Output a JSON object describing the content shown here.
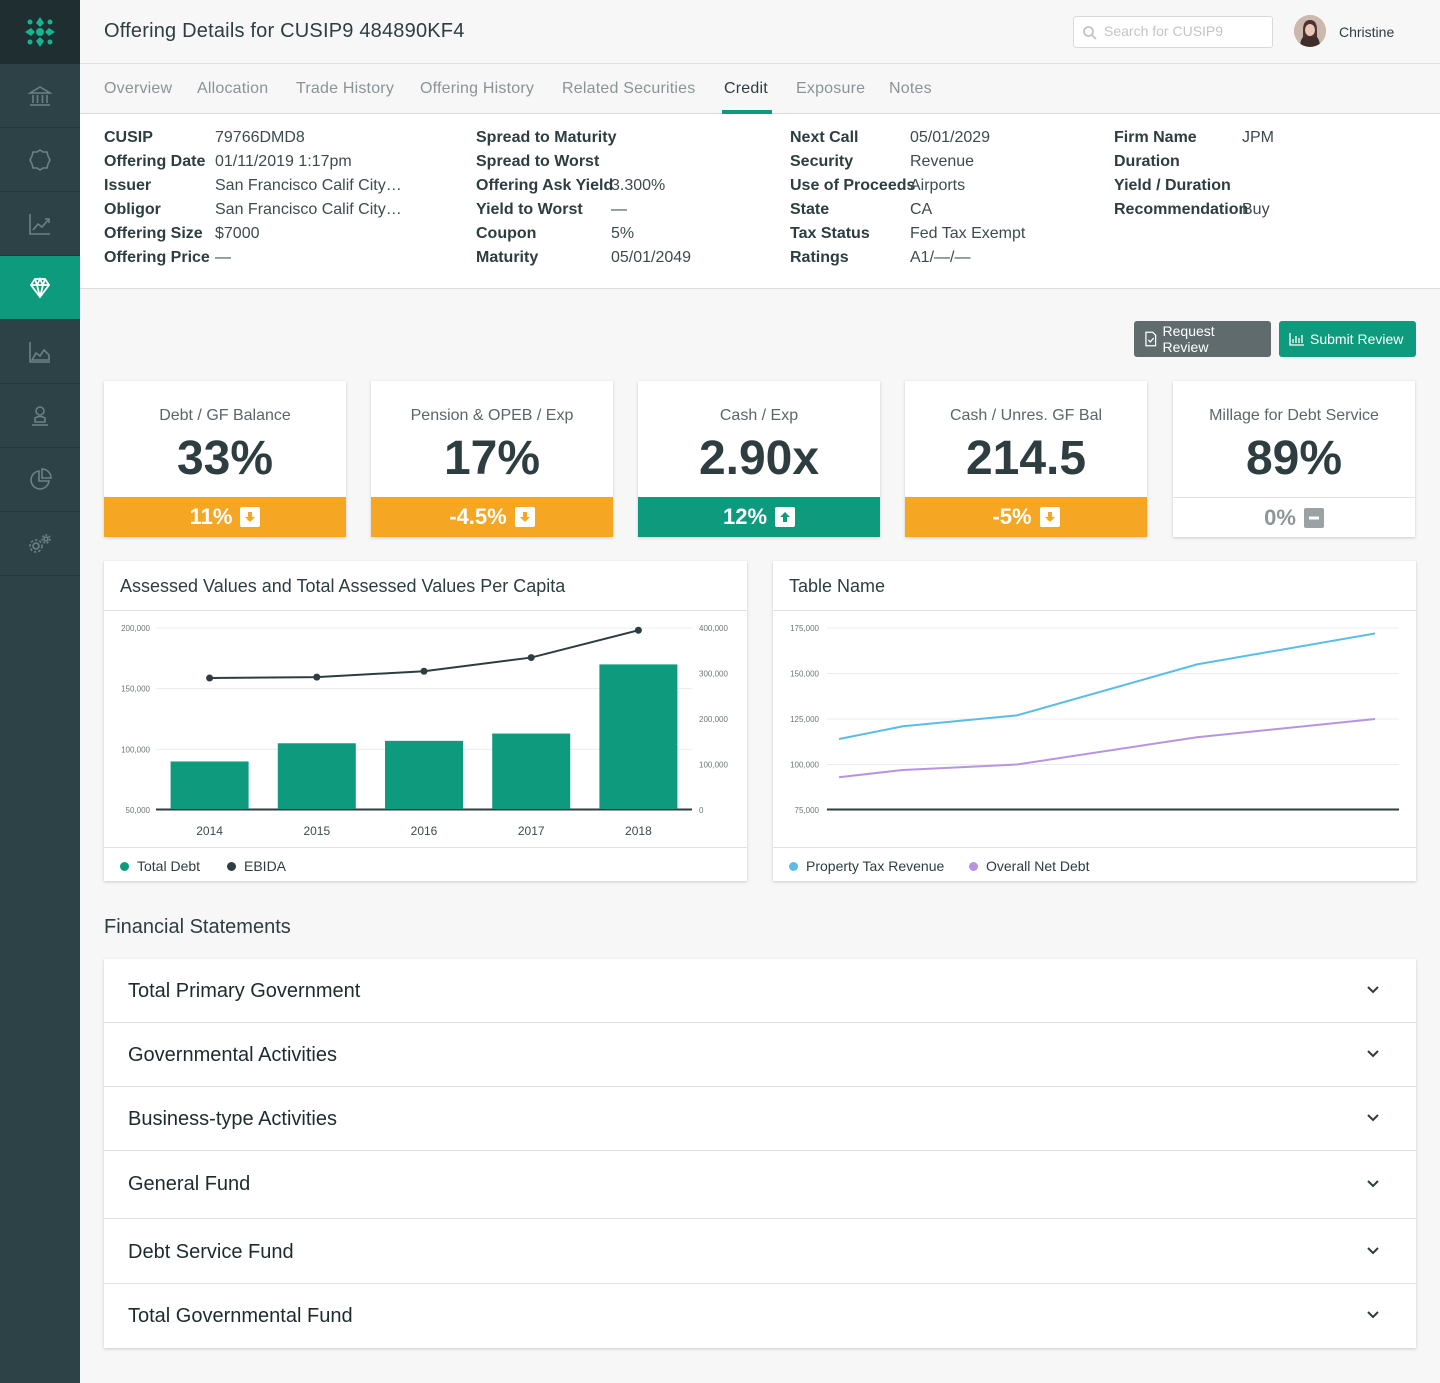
{
  "header": {
    "title": "Offering Details for CUSIP9 484890KF4",
    "search_placeholder": "Search for CUSIP9",
    "user_name": "Christine"
  },
  "sidebar": {
    "items": [
      {
        "icon": "bank-icon"
      },
      {
        "icon": "badge-icon"
      },
      {
        "icon": "trending-chart-icon"
      },
      {
        "icon": "diamond-icon",
        "active": true
      },
      {
        "icon": "area-chart-icon"
      },
      {
        "icon": "person-icon"
      },
      {
        "icon": "pie-chart-icon"
      },
      {
        "icon": "settings-gears-icon"
      }
    ]
  },
  "tabs": [
    "Overview",
    "Allocation",
    "Trade History",
    "Offering History",
    "Related Securities",
    "Credit",
    "Exposure",
    "Notes"
  ],
  "active_tab": "Credit",
  "details": {
    "col1": [
      {
        "label": "CUSIP",
        "value": "79766DMD8"
      },
      {
        "label": "Offering Date",
        "value": "01/11/2019 1:17pm"
      },
      {
        "label": "Issuer",
        "value": "San Francisco Calif City…"
      },
      {
        "label": "Obligor",
        "value": "San Francisco Calif City…"
      },
      {
        "label": "Offering Size",
        "value": "$7000"
      },
      {
        "label": "Offering Price",
        "value": "—"
      }
    ],
    "col2": [
      {
        "label": "Spread to Maturity",
        "value": ""
      },
      {
        "label": "Spread to Worst",
        "value": ""
      },
      {
        "label": "Offering Ask Yield",
        "value": "3.300%"
      },
      {
        "label": "Yield to Worst",
        "value": "—"
      },
      {
        "label": "Coupon",
        "value": "5%"
      },
      {
        "label": "Maturity",
        "value": "05/01/2049"
      }
    ],
    "col3": [
      {
        "label": "Next Call",
        "value": "05/01/2029"
      },
      {
        "label": "Security",
        "value": "Revenue"
      },
      {
        "label": "Use of Proceeds",
        "value": "Airports"
      },
      {
        "label": "State",
        "value": "CA"
      },
      {
        "label": "Tax Status",
        "value": "Fed Tax Exempt"
      },
      {
        "label": "Ratings",
        "value": "A1/—/—"
      }
    ],
    "col4": [
      {
        "label": "Firm Name",
        "value": "JPM"
      },
      {
        "label": "Duration",
        "value": ""
      },
      {
        "label": "Yield / Duration",
        "value": ""
      },
      {
        "label": "Recommendation",
        "value": "Buy"
      }
    ]
  },
  "actions": {
    "request_review": "Request Review",
    "submit_review": "Submit Review"
  },
  "kpis": [
    {
      "title": "Debt / GF Balance",
      "value": "33%",
      "change": "11%",
      "trend": "down",
      "status": "warning"
    },
    {
      "title": "Pension & OPEB / Exp",
      "value": "17%",
      "change": "-4.5%",
      "trend": "down",
      "status": "warning"
    },
    {
      "title": "Cash / Exp",
      "value": "2.90x",
      "change": "12%",
      "trend": "up",
      "status": "good"
    },
    {
      "title": "Cash / Unres. GF Bal",
      "value": "214.5",
      "change": "-5%",
      "trend": "down",
      "status": "warning"
    },
    {
      "title": "Millage for Debt Service",
      "value": "89%",
      "change": "0%",
      "trend": "flat",
      "status": "neutral"
    }
  ],
  "colors": {
    "primary": "#0e9a7d",
    "warning": "#f5a623",
    "sidebar": "#2d4246",
    "series_dark": "#2d3d40",
    "series_blue": "#5bbde6",
    "series_purple": "#b794e0"
  },
  "chart_data": [
    {
      "type": "bar",
      "title": "Assessed Values and Total Assessed Values Per Capita",
      "categories": [
        "2014",
        "2015",
        "2016",
        "2017",
        "2018"
      ],
      "series": [
        {
          "name": "Total Debt",
          "type": "bar",
          "axis": "left",
          "values": [
            90000,
            105000,
            107000,
            113000,
            170000
          ]
        },
        {
          "name": "EBIDA",
          "type": "line",
          "axis": "right",
          "values": [
            290000,
            292000,
            305000,
            335000,
            395000
          ]
        }
      ],
      "ylim": [
        50000,
        200000
      ],
      "y_ticks": [
        "200,000",
        "150,000",
        "100,000",
        "50,000"
      ],
      "y2lim": [
        0,
        400000
      ],
      "y2_ticks": [
        "400,000",
        "300,000",
        "200,000",
        "100,000",
        "0"
      ],
      "legend": "bottom-left",
      "grid": true
    },
    {
      "type": "line",
      "title": "Table Name",
      "series": [
        {
          "name": "Property Tax Revenue",
          "values": [
            114000,
            121000,
            127000,
            155000,
            172000
          ]
        },
        {
          "name": "Overall Net Debt",
          "values": [
            93000,
            97000,
            100000,
            115000,
            125000
          ]
        }
      ],
      "ylim": [
        75000,
        175000
      ],
      "y_ticks": [
        "175,000",
        "150,000",
        "125,000",
        "100,000",
        "75,000"
      ],
      "legend": "bottom-left",
      "grid": true
    }
  ],
  "financial_statements": {
    "heading": "Financial Statements",
    "sections": [
      "Total Primary Government",
      "Governmental Activities",
      "Business-type Activities",
      "General Fund",
      "Debt Service Fund",
      "Total Governmental Fund"
    ]
  }
}
